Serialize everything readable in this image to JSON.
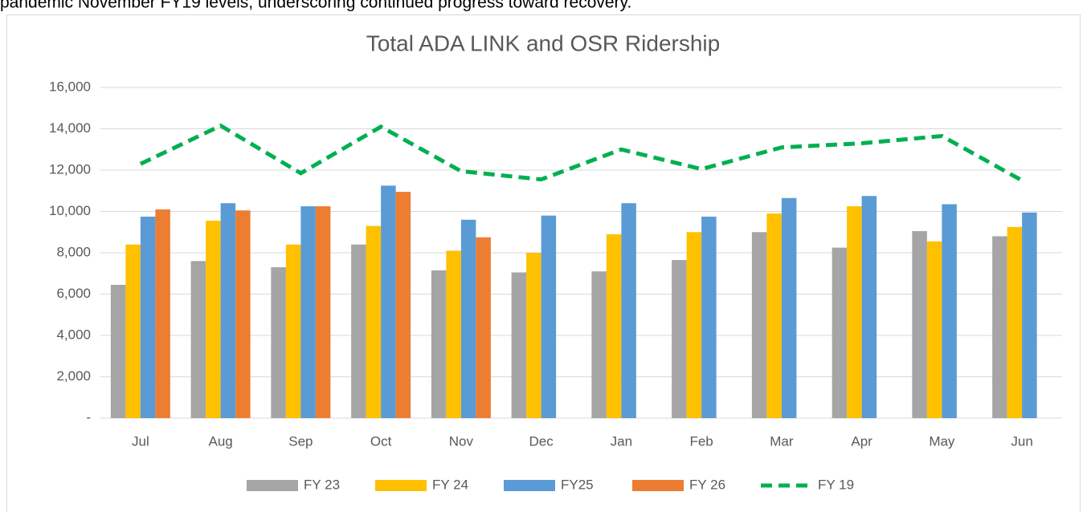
{
  "document_text": "pandemic November FY19 levels, underscoring continued progress toward recovery.",
  "chart_data": {
    "type": "bar",
    "title": "Total ADA LINK and OSR Ridership",
    "categories": [
      "Jul",
      "Aug",
      "Sep",
      "Oct",
      "Nov",
      "Dec",
      "Jan",
      "Feb",
      "Mar",
      "Apr",
      "May",
      "Jun"
    ],
    "series": [
      {
        "name": "FY 23",
        "color": "#a5a5a5",
        "values": [
          6450,
          7600,
          7300,
          8400,
          7150,
          7050,
          7100,
          7650,
          9000,
          8250,
          9050,
          8800
        ]
      },
      {
        "name": "FY 24",
        "color": "#ffc000",
        "values": [
          8400,
          9550,
          8400,
          9300,
          8100,
          8000,
          8900,
          9000,
          9900,
          10250,
          8550,
          9250
        ]
      },
      {
        "name": "FY25",
        "color": "#5b9bd5",
        "values": [
          9750,
          10400,
          10250,
          11250,
          9600,
          9800,
          10400,
          9750,
          10650,
          10750,
          10350,
          9950
        ]
      },
      {
        "name": "FY 26",
        "color": "#ed7d31",
        "values": [
          10100,
          10050,
          10250,
          10950,
          8750,
          null,
          null,
          null,
          null,
          null,
          null,
          null
        ]
      },
      {
        "name": "FY 19",
        "color": "#00b050",
        "type": "line",
        "dashed": true,
        "values": [
          12300,
          14150,
          11850,
          14100,
          11950,
          11550,
          13000,
          12050,
          13100,
          13300,
          13650,
          11500
        ]
      }
    ],
    "ylim": [
      0,
      16000
    ],
    "yticks": [
      {
        "value": 0,
        "label": "-"
      },
      {
        "value": 2000,
        "label": "2,000"
      },
      {
        "value": 4000,
        "label": "4,000"
      },
      {
        "value": 6000,
        "label": "6,000"
      },
      {
        "value": 8000,
        "label": "8,000"
      },
      {
        "value": 10000,
        "label": "10,000"
      },
      {
        "value": 12000,
        "label": "12,000"
      },
      {
        "value": 14000,
        "label": "14,000"
      },
      {
        "value": 16000,
        "label": "16,000"
      }
    ],
    "grid": true,
    "legend": "bottom"
  }
}
